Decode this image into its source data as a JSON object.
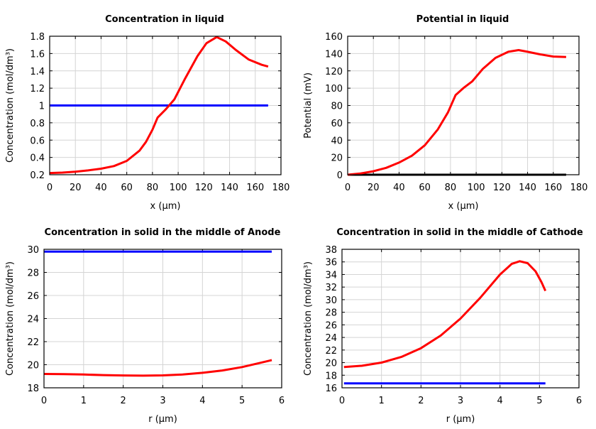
{
  "chart_data": [
    {
      "type": "line",
      "title": "Concentration in liquid",
      "xlabel": "x (µm)",
      "ylabel": "Concentration (mol/dm³)",
      "xlim": [
        0,
        180
      ],
      "ylim": [
        0.2,
        1.8
      ],
      "xticks": [
        0,
        20,
        40,
        60,
        80,
        100,
        120,
        140,
        160,
        180
      ],
      "yticks": [
        0.2,
        0.4,
        0.6,
        0.8,
        1,
        1.2,
        1.4,
        1.6,
        1.8
      ],
      "grid": true,
      "series": [
        {
          "color": "#0000ff",
          "x": [
            0,
            170
          ],
          "y": [
            1,
            1
          ]
        },
        {
          "color": "#ff0000",
          "x": [
            0,
            10,
            20,
            30,
            40,
            50,
            60,
            70,
            75,
            80,
            84,
            90,
            97,
            105,
            115,
            122,
            130,
            137,
            145,
            155,
            165,
            170
          ],
          "y": [
            0.22,
            0.225,
            0.235,
            0.25,
            0.27,
            0.3,
            0.36,
            0.48,
            0.58,
            0.72,
            0.86,
            0.95,
            1.07,
            1.3,
            1.57,
            1.72,
            1.79,
            1.74,
            1.64,
            1.53,
            1.47,
            1.45
          ]
        }
      ]
    },
    {
      "type": "line",
      "title": "Potential in liquid",
      "xlabel": "x (µm)",
      "ylabel": "Potential (mV)",
      "xlim": [
        0,
        180
      ],
      "ylim": [
        0,
        160
      ],
      "xticks": [
        0,
        20,
        40,
        60,
        80,
        100,
        120,
        140,
        160,
        180
      ],
      "yticks": [
        0,
        20,
        40,
        60,
        80,
        100,
        120,
        140,
        160
      ],
      "grid": true,
      "series": [
        {
          "color": "#000000",
          "x": [
            0,
            170
          ],
          "y": [
            0,
            0
          ]
        },
        {
          "color": "#ff0000",
          "x": [
            0,
            10,
            20,
            30,
            40,
            50,
            60,
            70,
            78,
            84,
            90,
            97,
            105,
            115,
            125,
            133,
            140,
            150,
            160,
            170
          ],
          "y": [
            0,
            1.5,
            4,
            8,
            14,
            22,
            34,
            52,
            72,
            92,
            100,
            108,
            122,
            135,
            142,
            144,
            142,
            139,
            136.5,
            136
          ]
        }
      ]
    },
    {
      "type": "line",
      "title": "Concentration in solid in the middle of Anode",
      "xlabel": "r (µm)",
      "ylabel": "Concentration (mol/dm³)",
      "xlim": [
        0,
        6
      ],
      "ylim": [
        18,
        30
      ],
      "xticks": [
        0,
        1,
        2,
        3,
        4,
        5,
        6
      ],
      "yticks": [
        18,
        20,
        22,
        24,
        26,
        28,
        30
      ],
      "grid": true,
      "series": [
        {
          "color": "#0000ff",
          "x": [
            0,
            5.75
          ],
          "y": [
            29.8,
            29.8
          ]
        },
        {
          "color": "#ff0000",
          "x": [
            0,
            0.5,
            1,
            1.5,
            2,
            2.5,
            3,
            3.5,
            4,
            4.5,
            5,
            5.5,
            5.75
          ],
          "y": [
            19.2,
            19.18,
            19.15,
            19.1,
            19.07,
            19.05,
            19.08,
            19.15,
            19.3,
            19.5,
            19.8,
            20.2,
            20.4
          ]
        }
      ]
    },
    {
      "type": "line",
      "title": "Concentration in solid in the middle of Cathode",
      "xlabel": "r (µm)",
      "ylabel": "Concentration (mol/dm³)",
      "xlim": [
        0,
        6
      ],
      "ylim": [
        16,
        38
      ],
      "xticks": [
        0,
        1,
        2,
        3,
        4,
        5,
        6
      ],
      "yticks": [
        16,
        18,
        20,
        22,
        24,
        26,
        28,
        30,
        32,
        34,
        36,
        38
      ],
      "grid": true,
      "series": [
        {
          "color": "#0000ff",
          "x": [
            0.05,
            5.15
          ],
          "y": [
            16.7,
            16.7
          ]
        },
        {
          "color": "#ff0000",
          "x": [
            0.05,
            0.5,
            1,
            1.5,
            2,
            2.5,
            3,
            3.5,
            4,
            4.3,
            4.5,
            4.7,
            4.9,
            5.05,
            5.15
          ],
          "y": [
            19.3,
            19.5,
            20.0,
            20.9,
            22.3,
            24.3,
            27,
            30.3,
            34,
            35.7,
            36.1,
            35.8,
            34.5,
            32.8,
            31.4
          ]
        }
      ]
    }
  ]
}
